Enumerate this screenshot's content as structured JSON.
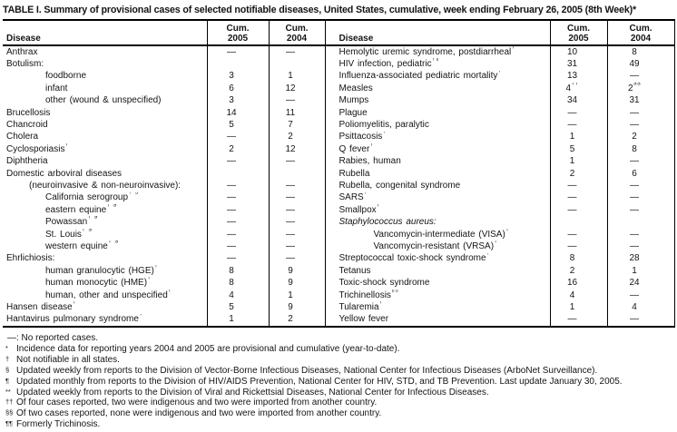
{
  "title": "TABLE I. Summary of provisional cases of selected notifiable diseases, United States, cumulative, week ending February 26, 2005 (8th Week)*",
  "header": {
    "disease": "Disease",
    "cum": "Cum.",
    "y2005": "2005",
    "y2004": "2004"
  },
  "left_rows": [
    {
      "label": "Anthrax",
      "sup": "",
      "ind": 0,
      "c5": "—",
      "c4": "—"
    },
    {
      "label": "Botulism:",
      "sup": "",
      "ind": 0,
      "c5": "",
      "c4": ""
    },
    {
      "label": "foodborne",
      "sup": "",
      "ind": 2,
      "c5": "3",
      "c4": "1"
    },
    {
      "label": "infant",
      "sup": "",
      "ind": 2,
      "c5": "6",
      "c4": "12"
    },
    {
      "label": "other (wound & unspecified)",
      "sup": "",
      "ind": 2,
      "c5": "3",
      "c4": "—"
    },
    {
      "label": "Brucellosis",
      "sup": "",
      "ind": 0,
      "c5": "14",
      "c4": "11"
    },
    {
      "label": "Chancroid",
      "sup": "",
      "ind": 0,
      "c5": "5",
      "c4": "7"
    },
    {
      "label": "Cholera",
      "sup": "",
      "ind": 0,
      "c5": "—",
      "c4": "2"
    },
    {
      "label": "Cyclosporiasis",
      "sup": "†",
      "ind": 0,
      "c5": "2",
      "c4": "12"
    },
    {
      "label": "Diphtheria",
      "sup": "",
      "ind": 0,
      "c5": "—",
      "c4": "—"
    },
    {
      "label": "Domestic arboviral diseases",
      "sup": "",
      "ind": 0,
      "c5": "",
      "c4": ""
    },
    {
      "label": "(neuroinvasive & non-neuroinvasive):",
      "sup": "",
      "ind": 1,
      "c5": "—",
      "c4": "—"
    },
    {
      "label": "California serogroup",
      "sup": "† §",
      "ind": 2,
      "c5": "—",
      "c4": "—"
    },
    {
      "label": "eastern equine",
      "sup": "† §",
      "ind": 2,
      "c5": "—",
      "c4": "—"
    },
    {
      "label": "Powassan",
      "sup": "† §",
      "ind": 2,
      "c5": "—",
      "c4": "—"
    },
    {
      "label": "St. Louis",
      "sup": "† §",
      "ind": 2,
      "c5": "—",
      "c4": "—"
    },
    {
      "label": "western equine",
      "sup": "† §",
      "ind": 2,
      "c5": "—",
      "c4": "—"
    },
    {
      "label": "Ehrlichiosis:",
      "sup": "",
      "ind": 0,
      "c5": "—",
      "c4": "—"
    },
    {
      "label": "human granulocytic (HGE)",
      "sup": "†",
      "ind": 2,
      "c5": "8",
      "c4": "9"
    },
    {
      "label": "human monocytic (HME)",
      "sup": "†",
      "ind": 2,
      "c5": "8",
      "c4": "9"
    },
    {
      "label": "human, other and unspecified",
      "sup": "†",
      "ind": 2,
      "c5": "4",
      "c4": "1"
    },
    {
      "label": "Hansen disease",
      "sup": "†",
      "ind": 0,
      "c5": "5",
      "c4": "9"
    },
    {
      "label": "Hantavirus pulmonary syndrome",
      "sup": "†",
      "ind": 0,
      "c5": "1",
      "c4": "2"
    }
  ],
  "right_rows": [
    {
      "label": "Hemolytic uremic syndrome, postdiarrheal",
      "sup": "†",
      "ind": 0,
      "c5": "10",
      "c4": "8"
    },
    {
      "label": "HIV infection, pediatric",
      "sup": "†¶",
      "ind": 0,
      "c5": "31",
      "c4": "49"
    },
    {
      "label": "Influenza-associated pediatric mortality",
      "sup": "†**",
      "ind": 0,
      "c5": "13",
      "c4": "—"
    },
    {
      "label": "Measles",
      "sup": "",
      "ind": 0,
      "c5": "4",
      "c5s": "††",
      "c4": "2",
      "c4s": "§§"
    },
    {
      "label": "Mumps",
      "sup": "",
      "ind": 0,
      "c5": "34",
      "c4": "31"
    },
    {
      "label": "Plague",
      "sup": "",
      "ind": 0,
      "c5": "—",
      "c4": "—"
    },
    {
      "label": "Poliomyelitis, paralytic",
      "sup": "",
      "ind": 0,
      "c5": "—",
      "c4": "—"
    },
    {
      "label": "Psittacosis",
      "sup": "†",
      "ind": 0,
      "c5": "1",
      "c4": "2"
    },
    {
      "label": "Q fever",
      "sup": "†",
      "ind": 0,
      "c5": "5",
      "c4": "8"
    },
    {
      "label": "Rabies, human",
      "sup": "",
      "ind": 0,
      "c5": "1",
      "c4": "—"
    },
    {
      "label": "Rubella",
      "sup": "",
      "ind": 0,
      "c5": "2",
      "c4": "6"
    },
    {
      "label": "Rubella, congenital syndrome",
      "sup": "",
      "ind": 0,
      "c5": "—",
      "c4": "—"
    },
    {
      "label": "SARS",
      "sup": "†**",
      "ind": 0,
      "c5": "—",
      "c4": "—"
    },
    {
      "label": "Smallpox",
      "sup": "†",
      "ind": 0,
      "c5": "—",
      "c4": "—"
    },
    {
      "label": "Staphylococcus aureus:",
      "sup": "",
      "ind": 0,
      "italic": true,
      "c5": "",
      "c4": ""
    },
    {
      "label": "Vancomycin-intermediate (VISA)",
      "sup": "†",
      "ind": 2,
      "c5": "—",
      "c4": "—"
    },
    {
      "label": "Vancomycin-resistant (VRSA)",
      "sup": "†",
      "ind": 2,
      "c5": "—",
      "c4": "—"
    },
    {
      "label": "Streptococcal toxic-shock syndrome",
      "sup": "†",
      "ind": 0,
      "c5": "8",
      "c4": "28"
    },
    {
      "label": "Tetanus",
      "sup": "",
      "ind": 0,
      "c5": "2",
      "c4": "1"
    },
    {
      "label": "Toxic-shock syndrome",
      "sup": "",
      "ind": 0,
      "c5": "16",
      "c4": "24"
    },
    {
      "label": "Trichinellosis",
      "sup": "¶¶",
      "ind": 0,
      "c5": "4",
      "c4": "—"
    },
    {
      "label": "Tularemia",
      "sup": "†",
      "ind": 0,
      "c5": "1",
      "c4": "4"
    },
    {
      "label": "Yellow fever",
      "sup": "",
      "ind": 0,
      "c5": "—",
      "c4": "—"
    }
  ],
  "legend": "—:  No reported cases.",
  "footnotes": [
    {
      "marker": "*",
      "text": "Incidence data for reporting years 2004 and 2005 are provisional and cumulative (year-to-date)."
    },
    {
      "marker": "†",
      "text": "Not notifiable in all states."
    },
    {
      "marker": "§",
      "text": "Updated weekly from reports to the Division of Vector-Borne Infectious Diseases, National Center for Infectious Diseases (ArboNet Surveillance)."
    },
    {
      "marker": "¶",
      "text": "Updated monthly from reports to the Division of HIV/AIDS Prevention, National Center for HIV, STD, and TB Prevention. Last update January 30, 2005."
    },
    {
      "marker": "**",
      "text": "Updated weekly from reports to the Division of Viral and Rickettsial Diseases, National Center for Infectious Diseases."
    },
    {
      "marker": "††",
      "text": "Of four cases reported, two were indigenous and two were imported from another country."
    },
    {
      "marker": "§§",
      "text": "Of two cases reported, none were indigenous and two were imported from another country."
    },
    {
      "marker": "¶¶",
      "text": "Formerly Trichinosis."
    }
  ],
  "colors": {
    "text": "#141414",
    "rule": "#000000",
    "background": "#ffffff"
  }
}
